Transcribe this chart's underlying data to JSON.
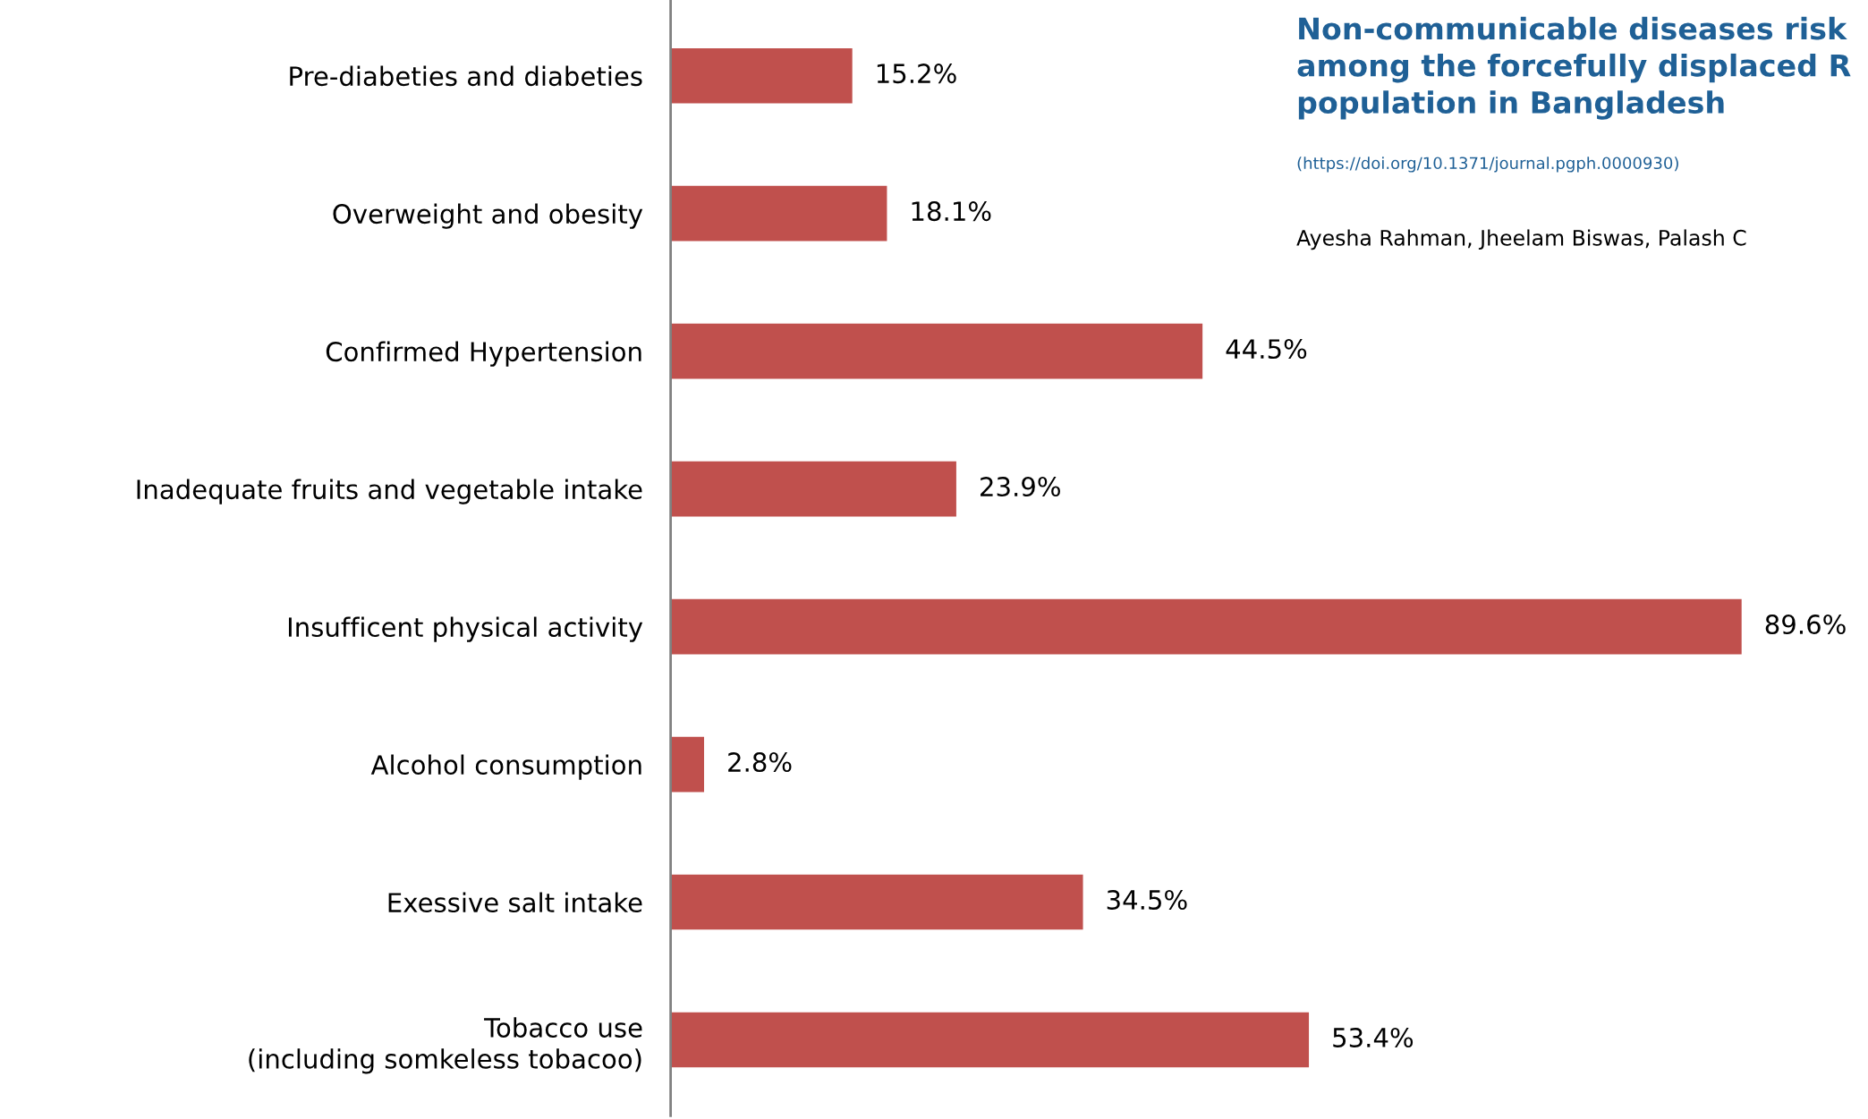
{
  "chart_data": {
    "type": "bar",
    "orientation": "horizontal",
    "title": "Non-communicable diseases risk\namong the forcefully displaced R\npopulation in Bangladesh",
    "subtitle": "(https://doi.org/10.1371/journal.pgph.0000930)",
    "annotations": [
      "Ayesha Rahman, Jheelam Biswas, Palash C"
    ],
    "categories": [
      "Pre-diabeties and diabeties",
      "Overweight and obesity",
      "Confirmed Hypertension",
      "Inadequate fruits and vegetable intake",
      "Insufficent physical activity",
      "Alcohol consumption",
      "Exessive salt intake",
      "Tobacco use\n(including somkeless tobacoo)"
    ],
    "values": [
      15.2,
      18.1,
      44.5,
      23.9,
      89.6,
      2.8,
      34.5,
      53.4
    ],
    "value_labels": [
      "15.2%",
      "18.1%",
      "44.5%",
      "23.9%",
      "89.6%",
      "2.8%",
      "34.5%",
      "53.4%"
    ],
    "color": "#c0504d",
    "tick_labels": "y",
    "grid": false,
    "legend": false
  }
}
